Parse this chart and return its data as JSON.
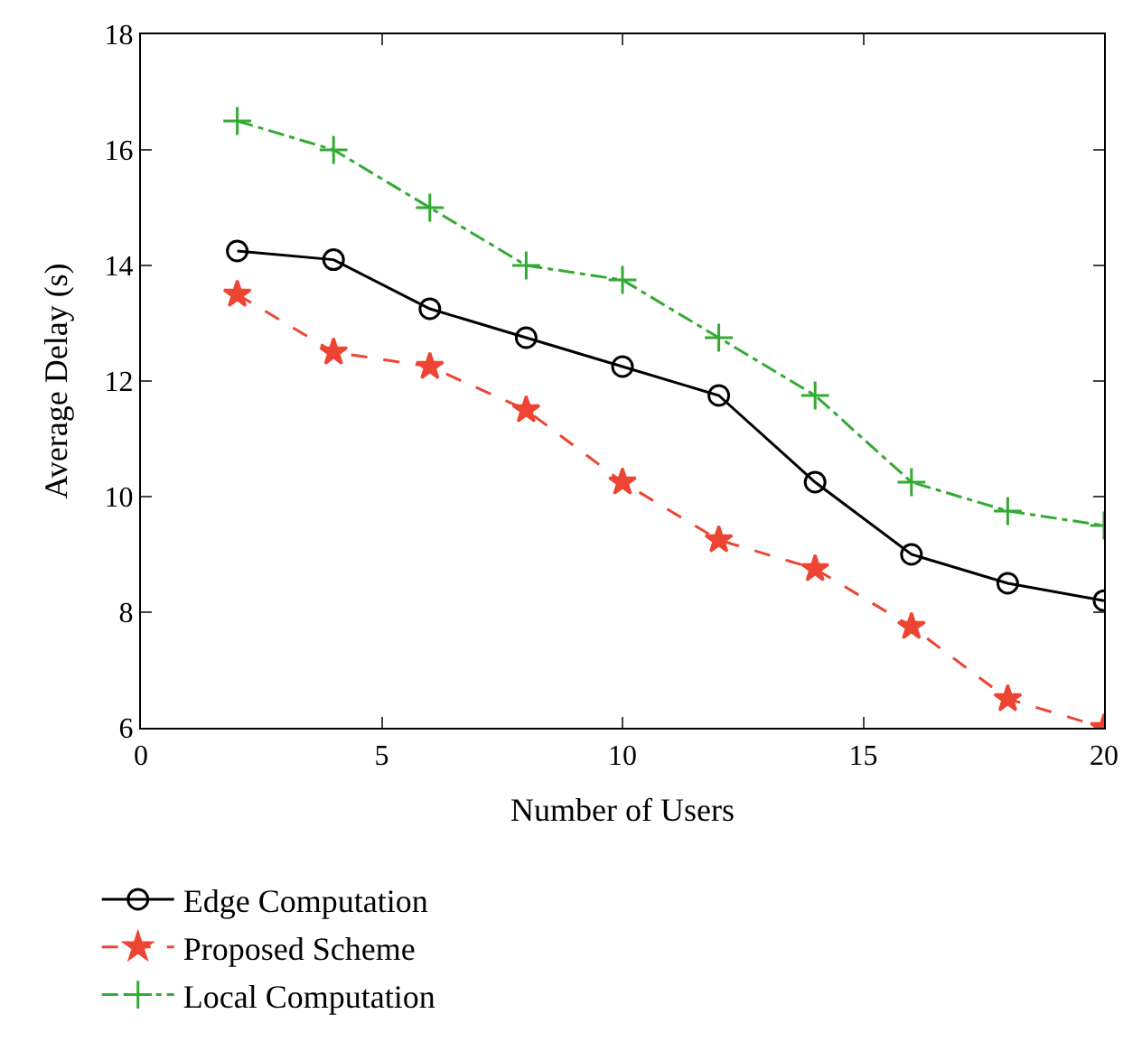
{
  "chart_data": {
    "type": "line",
    "xlabel": "Number of Users",
    "ylabel": "Average Delay (s)",
    "x": [
      2,
      4,
      6,
      8,
      10,
      12,
      14,
      16,
      18,
      20
    ],
    "series": [
      {
        "name": "Edge Computation",
        "color": "#000000",
        "marker": "circle",
        "line_style": "solid",
        "values": [
          14.25,
          14.1,
          13.25,
          12.75,
          12.25,
          11.75,
          10.25,
          9,
          8.5,
          8.2
        ]
      },
      {
        "name": "Proposed Scheme",
        "color": "#ee4433",
        "marker": "star",
        "line_style": "dashed",
        "values": [
          13.5,
          12.5,
          12.25,
          11.5,
          10.25,
          9.25,
          8.75,
          7.75,
          6.5,
          6
        ]
      },
      {
        "name": "Local Computation",
        "color": "#33aa33",
        "marker": "cross",
        "line_style": "dashdot",
        "values": [
          16.5,
          16,
          15,
          14,
          13.75,
          12.75,
          11.75,
          10.25,
          9.75,
          9.5
        ]
      }
    ],
    "xlim": [
      0,
      20
    ],
    "xticks": [
      0,
      5,
      10,
      15,
      20
    ],
    "ylim": [
      6,
      18
    ],
    "yticks": [
      6,
      8,
      10,
      12,
      14,
      16,
      18
    ],
    "legend": "bottom left"
  }
}
